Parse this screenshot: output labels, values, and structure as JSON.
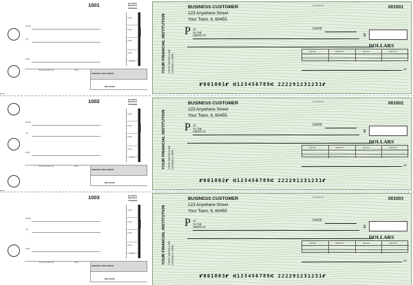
{
  "stubs": [
    {
      "number": "1001",
      "balance_forward": "BALANCE BROUGHT FORWARD",
      "fields": [
        "DATE",
        "TO",
        "FOR"
      ],
      "deposit_rows": [
        "DATE",
        "DATE",
        "DATE",
        "DATE"
      ],
      "deposits_label": "DEPOSITS",
      "total_label": "TOTAL",
      "invoice_label": "INVOICE AMOUNT",
      "disc_label": "DISC",
      "amount_this_check": "AMOUNT THIS CHECK",
      "balance_label": "BALANCE"
    },
    {
      "number": "1002",
      "balance_forward": "BALANCE BROUGHT FORWARD",
      "fields": [
        "DATE",
        "TO",
        "FOR"
      ],
      "deposit_rows": [
        "DATE",
        "DATE",
        "DATE",
        "DATE"
      ],
      "deposits_label": "DEPOSITS",
      "total_label": "TOTAL",
      "invoice_label": "INVOICE AMOUNT",
      "disc_label": "DISC",
      "amount_this_check": "AMOUNT THIS CHECK",
      "balance_label": "BALANCE"
    },
    {
      "number": "1003",
      "balance_forward": "BALANCE BROUGHT FORWARD",
      "fields": [
        "DATE",
        "TO",
        "FOR"
      ],
      "deposit_rows": [
        "DATE",
        "DATE",
        "DATE",
        "DATE"
      ],
      "deposits_label": "DEPOSITS",
      "total_label": "TOTAL",
      "invoice_label": "INVOICE AMOUNT",
      "disc_label": "DISC",
      "amount_this_check": "AMOUNT THIS CHECK",
      "balance_label": "BALANCE"
    }
  ],
  "checks": [
    {
      "customer_name": "BUSINESS CUSTOMER",
      "customer_address": "123 Anywhere Street",
      "customer_city": "Your Town, IL 60455",
      "fractional": "00-6789/1234",
      "number": "001001",
      "date_label": "DATE",
      "pay_initial": "P",
      "pay_text_1": "AY",
      "pay_text_2": "TO THE",
      "pay_text_3": "ORDER OF",
      "dollar_sign": "$",
      "dollars_label": "DOLLARS",
      "memo_headers": [
        "INV NO",
        "AMOUNT",
        "INV NO",
        "AMOUNT"
      ],
      "mp": "MP",
      "bank_name": "YOUR FINANCIAL INSTITUTION",
      "bank_address": "3 WEST MAYFIELD AVE",
      "bank_city": "CHICAGO, IL 55555",
      "micr": "⑈001001⑈ ⑆123456789⑆ 222291231231⑈"
    },
    {
      "customer_name": "BUSINESS CUSTOMER",
      "customer_address": "123 Anywhere Street",
      "customer_city": "Your Town, IL 60455",
      "fractional": "00-6789/1234",
      "number": "001002",
      "date_label": "DATE",
      "pay_initial": "P",
      "pay_text_1": "AY",
      "pay_text_2": "TO THE",
      "pay_text_3": "ORDER OF",
      "dollar_sign": "$",
      "dollars_label": "DOLLARS",
      "memo_headers": [
        "INV NO",
        "AMOUNT",
        "INV NO",
        "AMOUNT"
      ],
      "mp": "MP",
      "bank_name": "YOUR FINANCIAL INSTITUTION",
      "bank_address": "3 WEST MAYFIELD AVE",
      "bank_city": "CHICAGO, IL 55555",
      "micr": "⑈001002⑈ ⑆123456789⑆ 222291231231⑈"
    },
    {
      "customer_name": "BUSINESS CUSTOMER",
      "customer_address": "123 Anywhere Street",
      "customer_city": "Your Town, IL 60455",
      "fractional": "00-6789/1234",
      "number": "001003",
      "date_label": "DATE",
      "pay_initial": "P",
      "pay_text_1": "AY",
      "pay_text_2": "TO THE",
      "pay_text_3": "ORDER OF",
      "dollar_sign": "$",
      "dollars_label": "DOLLARS",
      "memo_headers": [
        "INV NO",
        "AMOUNT",
        "INV NO",
        "AMOUNT"
      ],
      "mp": "MP",
      "bank_name": "YOUR FINANCIAL INSTITUTION",
      "bank_address": "3 WEST MAYFIELD AVE",
      "bank_city": "CHICAGO, IL 55555",
      "micr": "⑈001003⑈ ⑆123456789⑆ 222291231231⑈"
    }
  ],
  "colors": {
    "check_bg": "#e6f0e2",
    "check_border": "#7fa17a",
    "wave": "#8fb58a"
  }
}
